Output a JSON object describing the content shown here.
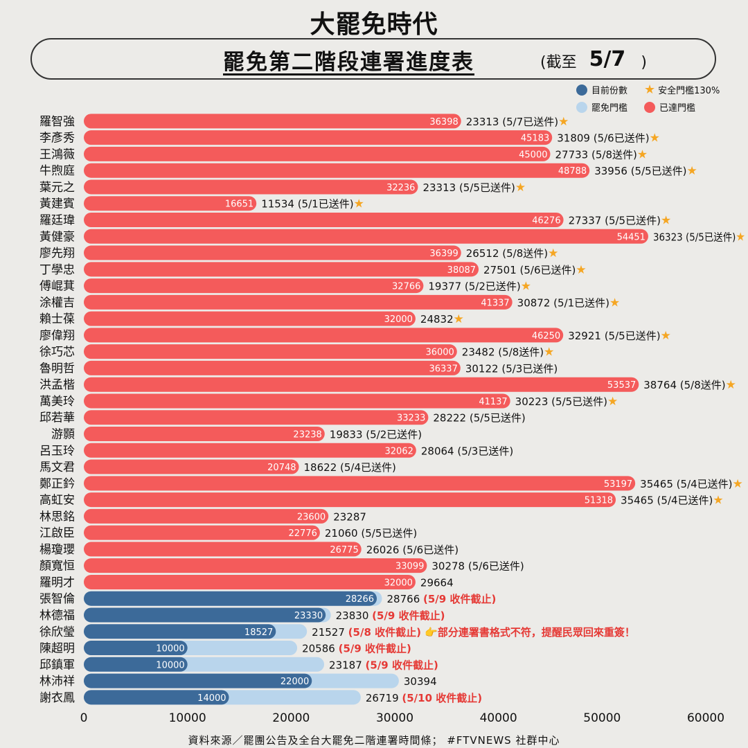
{
  "brand": "大罷免時代",
  "title": {
    "main": "罷免第二階段連署進度表",
    "asof_prefix": "(截至",
    "asof_date": "5/7",
    "asof_suffix": ")"
  },
  "legend": {
    "current": "目前份數",
    "safe": "安全門檻130%",
    "threshold": "罷免門檻",
    "reached": "已達門檻"
  },
  "colors": {
    "reached": "#f45b5b",
    "current": "#3c6a99",
    "threshold": "#b9d5ec",
    "star": "#f5a623",
    "note_red": "#e53935"
  },
  "footer": "資料來源／罷團公告及全台大罷免二階連署時間條； #FTVNEWS 社群中心",
  "chart_data": {
    "type": "bar",
    "orientation": "horizontal",
    "xlim": [
      0,
      60000
    ],
    "xticks": [
      "0",
      "10000",
      "20000",
      "30000",
      "40000",
      "50000",
      "60000"
    ],
    "rows": [
      {
        "name": "羅智強",
        "status": "reached",
        "value": 36398,
        "threshold": 23313,
        "note": "(5/7已送件)",
        "star": true
      },
      {
        "name": "李彥秀",
        "status": "reached",
        "value": 45183,
        "threshold": 31809,
        "note": "(5/6已送件)",
        "star": true
      },
      {
        "name": "王鴻薇",
        "status": "reached",
        "value": 45000,
        "threshold": 27733,
        "note": "(5/8送件)",
        "star": true
      },
      {
        "name": "牛煦庭",
        "status": "reached",
        "value": 48788,
        "threshold": 33956,
        "note": "(5/5已送件)",
        "star": true
      },
      {
        "name": "葉元之",
        "status": "reached",
        "value": 32236,
        "threshold": 23313,
        "note": "(5/5已送件)",
        "star": true
      },
      {
        "name": "黃建賓",
        "status": "reached",
        "value": 16651,
        "threshold": 11534,
        "note": "(5/1已送件)",
        "star": true
      },
      {
        "name": "羅廷瑋",
        "status": "reached",
        "value": 46276,
        "threshold": 27337,
        "note": "(5/5已送件)",
        "star": true
      },
      {
        "name": "黃健豪",
        "status": "reached",
        "value": 54451,
        "threshold": 36323,
        "note": "(5/5已送件)",
        "star": true
      },
      {
        "name": "廖先翔",
        "status": "reached",
        "value": 36399,
        "threshold": 26512,
        "note": "(5/8送件)",
        "star": true
      },
      {
        "name": "丁學忠",
        "status": "reached",
        "value": 38087,
        "threshold": 27501,
        "note": "(5/6已送件)",
        "star": true
      },
      {
        "name": "傅崐萁",
        "status": "reached",
        "value": 32766,
        "threshold": 19377,
        "note": "(5/2已送件)",
        "star": true
      },
      {
        "name": "涂權吉",
        "status": "reached",
        "value": 41337,
        "threshold": 30872,
        "note": "(5/1已送件)",
        "star": true
      },
      {
        "name": "賴士葆",
        "status": "reached",
        "value": 32000,
        "threshold": 24832,
        "note": "",
        "star": true
      },
      {
        "name": "廖偉翔",
        "status": "reached",
        "value": 46250,
        "threshold": 32921,
        "note": "(5/5已送件)",
        "star": true
      },
      {
        "name": "徐巧芯",
        "status": "reached",
        "value": 36000,
        "threshold": 23482,
        "note": "(5/8送件)",
        "star": true
      },
      {
        "name": "魯明哲",
        "status": "reached",
        "value": 36337,
        "threshold": 30122,
        "note": "(5/3已送件)",
        "star": false
      },
      {
        "name": "洪孟楷",
        "status": "reached",
        "value": 53537,
        "threshold": 38764,
        "note": "(5/8送件)",
        "star": true
      },
      {
        "name": "萬美玲",
        "status": "reached",
        "value": 41137,
        "threshold": 30223,
        "note": "(5/5已送件)",
        "star": true
      },
      {
        "name": "邱若華",
        "status": "reached",
        "value": 33233,
        "threshold": 28222,
        "note": "(5/5已送件)",
        "star": false
      },
      {
        "name": "游顥",
        "status": "reached",
        "value": 23238,
        "threshold": 19833,
        "note": "(5/2已送件)",
        "star": false
      },
      {
        "name": "呂玉玲",
        "status": "reached",
        "value": 32062,
        "threshold": 28064,
        "note": "(5/3已送件)",
        "star": false
      },
      {
        "name": "馬文君",
        "status": "reached",
        "value": 20748,
        "threshold": 18622,
        "note": "(5/4已送件)",
        "star": false
      },
      {
        "name": "鄭正鈐",
        "status": "reached",
        "value": 53197,
        "threshold": 35465,
        "note": "(5/4已送件)",
        "star": true
      },
      {
        "name": "高虹安",
        "status": "reached",
        "value": 51318,
        "threshold": 35465,
        "note": "(5/4已送件)",
        "star": true
      },
      {
        "name": "林思銘",
        "status": "reached",
        "value": 23600,
        "threshold": 23287,
        "note": "",
        "star": false
      },
      {
        "name": "江啟臣",
        "status": "reached",
        "value": 22776,
        "threshold": 21060,
        "note": "(5/5已送件)",
        "star": false
      },
      {
        "name": "楊瓊瓔",
        "status": "reached",
        "value": 26775,
        "threshold": 26026,
        "note": "(5/6已送件)",
        "star": false
      },
      {
        "name": "顏寬恒",
        "status": "reached",
        "value": 33099,
        "threshold": 30278,
        "note": "(5/6已送件)",
        "star": false
      },
      {
        "name": "羅明才",
        "status": "reached",
        "value": 32000,
        "threshold": 29664,
        "note": "",
        "star": false
      },
      {
        "name": "張智倫",
        "status": "current",
        "value": 28266,
        "threshold": 28766,
        "note": "(5/9 收件截止)",
        "star": false
      },
      {
        "name": "林德福",
        "status": "current",
        "value": 23330,
        "threshold": 23830,
        "note": "(5/9 收件截止)",
        "star": false
      },
      {
        "name": "徐欣瑩",
        "status": "current",
        "value": 18527,
        "threshold": 21527,
        "note": "(5/8 收件截止)",
        "extra": "👉部分連署書格式不符，提醒民眾回來重簽！",
        "star": false
      },
      {
        "name": "陳超明",
        "status": "current",
        "value": 10000,
        "threshold": 20586,
        "note": "(5/9 收件截止)",
        "star": false
      },
      {
        "name": "邱鎮軍",
        "status": "current",
        "value": 10000,
        "threshold": 23187,
        "note": "(5/9 收件截止)",
        "star": false
      },
      {
        "name": "林沛祥",
        "status": "current",
        "value": 22000,
        "threshold": 30394,
        "note": "",
        "star": false
      },
      {
        "name": "謝衣鳳",
        "status": "current",
        "value": 14000,
        "threshold": 26719,
        "note": "(5/10 收件截止)",
        "star": false
      }
    ]
  }
}
